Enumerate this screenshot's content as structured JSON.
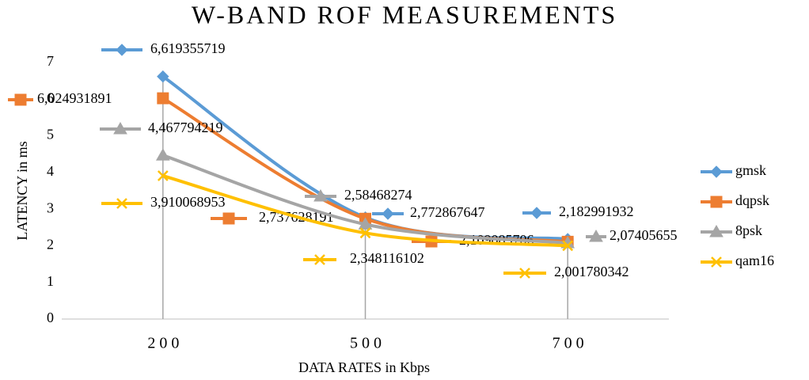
{
  "chart_data": {
    "type": "line",
    "title": "W-BAND ROF MEASUREMENTS",
    "x_label": "DATA RATES in Kbps",
    "y_label": "LATENCY in ms",
    "categories": [
      "200",
      "500",
      "700"
    ],
    "ylim": [
      0,
      7
    ],
    "yticks": [
      0,
      1,
      2,
      3,
      4,
      5,
      6,
      7
    ],
    "grid": false,
    "legend": "right",
    "series": [
      {
        "name": "gmsk",
        "color": "#5b9bd5",
        "marker": "diamond",
        "values": [
          6.619355719,
          2.772867647,
          2.182991932
        ],
        "value_labels": [
          "6,619355719",
          "2,772867647",
          "2,182991932"
        ]
      },
      {
        "name": "dqpsk",
        "color": "#ed7d31",
        "marker": "square",
        "values": [
          6.024931891,
          2.737628191,
          2.109085706
        ],
        "value_labels": [
          "6,024931891",
          "2,737628191",
          "2,109085706"
        ]
      },
      {
        "name": "8psk",
        "color": "#a5a5a5",
        "marker": "triangle",
        "values": [
          4.467794219,
          2.58468274,
          2.07405655
        ],
        "value_labels": [
          "4,467794219",
          "2,58468274",
          "2,07405655"
        ]
      },
      {
        "name": "qam16",
        "color": "#ffc000",
        "marker": "x",
        "values": [
          3.910068953,
          2.348116102,
          2.001780342
        ],
        "value_labels": [
          "3,910068953",
          "2,348116102",
          "2,001780342"
        ]
      }
    ]
  }
}
